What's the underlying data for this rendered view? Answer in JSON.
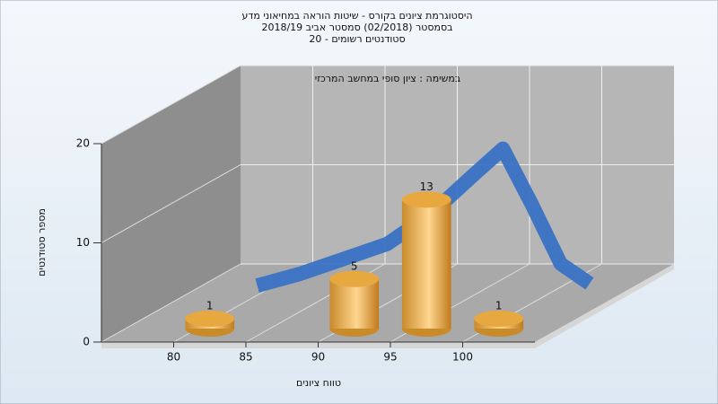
{
  "chart_data": {
    "type": "histogram",
    "title": "היסטוגרמת ציונים בקורס - שיטות הוראה במחיאוני מדע",
    "subtitle_lines": [
      "בסמסטר (02/2018) סמסטר אביב 2018/19",
      "סטודנטים רשומים - 20"
    ],
    "annotation": "במשימה : ציון סופי במחשב המרכזי",
    "x_label": "טווח ציונים",
    "y_label": "מספר סטודנטים",
    "bins": [
      80,
      85,
      90,
      95,
      100,
      105
    ],
    "counts": [
      1,
      0,
      5,
      13,
      1
    ],
    "value_labels": [
      "1",
      null,
      "5",
      "13",
      "1"
    ],
    "color": "#e8a840",
    "curve": {
      "color": "#3a72c4",
      "x": [
        81,
        84,
        87,
        90,
        93,
        96,
        98,
        100,
        102,
        104
      ],
      "values": [
        1.8,
        3,
        4.5,
        6,
        9,
        13,
        15.6,
        10,
        4,
        2
      ]
    },
    "xlim": [
      75,
      105
    ],
    "xticks": [
      80,
      85,
      90,
      95,
      100
    ],
    "ylim": [
      0,
      20
    ],
    "yticks": [
      0,
      10,
      20
    ],
    "grid": true
  }
}
